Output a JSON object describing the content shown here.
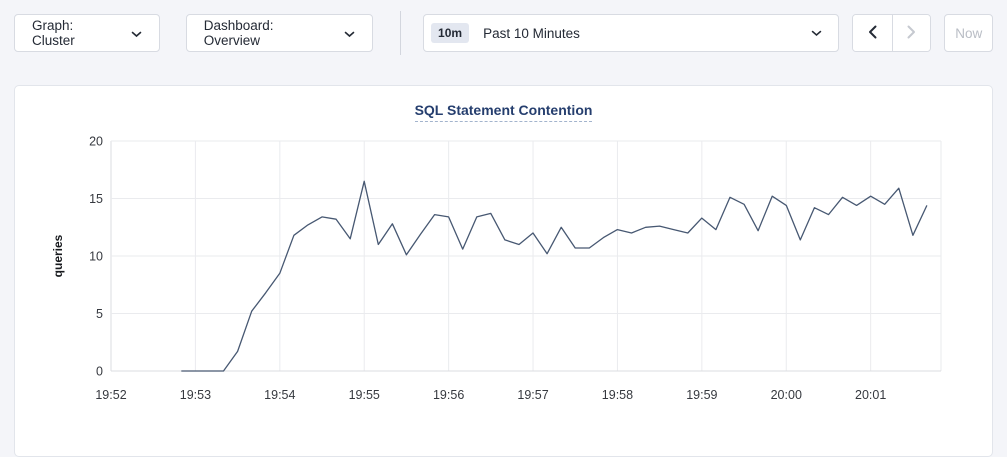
{
  "toolbar": {
    "graph_dropdown": {
      "label": "Graph: Cluster"
    },
    "dashboard_dropdown": {
      "label": "Dashboard: Overview"
    },
    "time_picker": {
      "badge": "10m",
      "label": "Past 10 Minutes"
    },
    "now_button": {
      "label": "Now",
      "enabled": false
    },
    "prev_enabled": true,
    "next_enabled": false
  },
  "colors": {
    "page_background": "#f4f5f9",
    "button_border": "#d8dbe2",
    "text_dark": "#242a35",
    "disabled_text": "#b9bdc5",
    "badge_background": "#e3e7f0",
    "title_blue": "#253e6e",
    "gridline": "#eaebee",
    "axis_line": "#dbdce0",
    "series_line": "#475872"
  },
  "chart_data": {
    "type": "line",
    "title": "SQL Statement Contention",
    "ylabel": "queries",
    "ylim": [
      0,
      20
    ],
    "yticks": [
      0,
      5,
      10,
      15,
      20
    ],
    "grid": true,
    "legend": "none",
    "x_axis": {
      "start": "19:52:00",
      "end": "20:01:50",
      "tick_interval_seconds": 60,
      "tick_labels": [
        "19:52",
        "19:53",
        "19:54",
        "19:55",
        "19:56",
        "19:57",
        "19:58",
        "19:59",
        "20:00",
        "20:01"
      ]
    },
    "series": [
      {
        "name": "SQL Statement Contention",
        "unit": "queries",
        "color": "#475872",
        "points": [
          [
            "19:52:50",
            0
          ],
          [
            "19:53:00",
            0
          ],
          [
            "19:53:10",
            0
          ],
          [
            "19:53:20",
            0
          ],
          [
            "19:53:30",
            1.7
          ],
          [
            "19:53:40",
            5.2
          ],
          [
            "19:53:50",
            6.8
          ],
          [
            "19:54:00",
            8.5
          ],
          [
            "19:54:10",
            11.8
          ],
          [
            "19:54:20",
            12.7
          ],
          [
            "19:54:30",
            13.4
          ],
          [
            "19:54:40",
            13.2
          ],
          [
            "19:54:50",
            11.5
          ],
          [
            "19:55:00",
            16.5
          ],
          [
            "19:55:10",
            11.0
          ],
          [
            "19:55:20",
            12.8
          ],
          [
            "19:55:30",
            10.1
          ],
          [
            "19:55:40",
            11.9
          ],
          [
            "19:55:50",
            13.6
          ],
          [
            "19:56:00",
            13.4
          ],
          [
            "19:56:10",
            10.6
          ],
          [
            "19:56:20",
            13.4
          ],
          [
            "19:56:30",
            13.7
          ],
          [
            "19:56:40",
            11.4
          ],
          [
            "19:56:50",
            11.0
          ],
          [
            "19:57:00",
            12.0
          ],
          [
            "19:57:10",
            10.2
          ],
          [
            "19:57:20",
            12.5
          ],
          [
            "19:57:30",
            10.7
          ],
          [
            "19:57:40",
            10.7
          ],
          [
            "19:57:50",
            11.6
          ],
          [
            "19:58:00",
            12.3
          ],
          [
            "19:58:10",
            12.0
          ],
          [
            "19:58:20",
            12.5
          ],
          [
            "19:58:30",
            12.6
          ],
          [
            "19:58:40",
            12.3
          ],
          [
            "19:58:50",
            12.0
          ],
          [
            "19:59:00",
            13.3
          ],
          [
            "19:59:10",
            12.3
          ],
          [
            "19:59:20",
            15.1
          ],
          [
            "19:59:30",
            14.5
          ],
          [
            "19:59:40",
            12.2
          ],
          [
            "19:59:50",
            15.2
          ],
          [
            "20:00:00",
            14.4
          ],
          [
            "20:00:10",
            11.4
          ],
          [
            "20:00:20",
            14.2
          ],
          [
            "20:00:30",
            13.6
          ],
          [
            "20:00:40",
            15.1
          ],
          [
            "20:00:50",
            14.4
          ],
          [
            "20:01:00",
            15.2
          ],
          [
            "20:01:10",
            14.5
          ],
          [
            "20:01:20",
            15.9
          ],
          [
            "20:01:30",
            11.8
          ],
          [
            "20:01:40",
            14.4
          ]
        ]
      }
    ]
  }
}
